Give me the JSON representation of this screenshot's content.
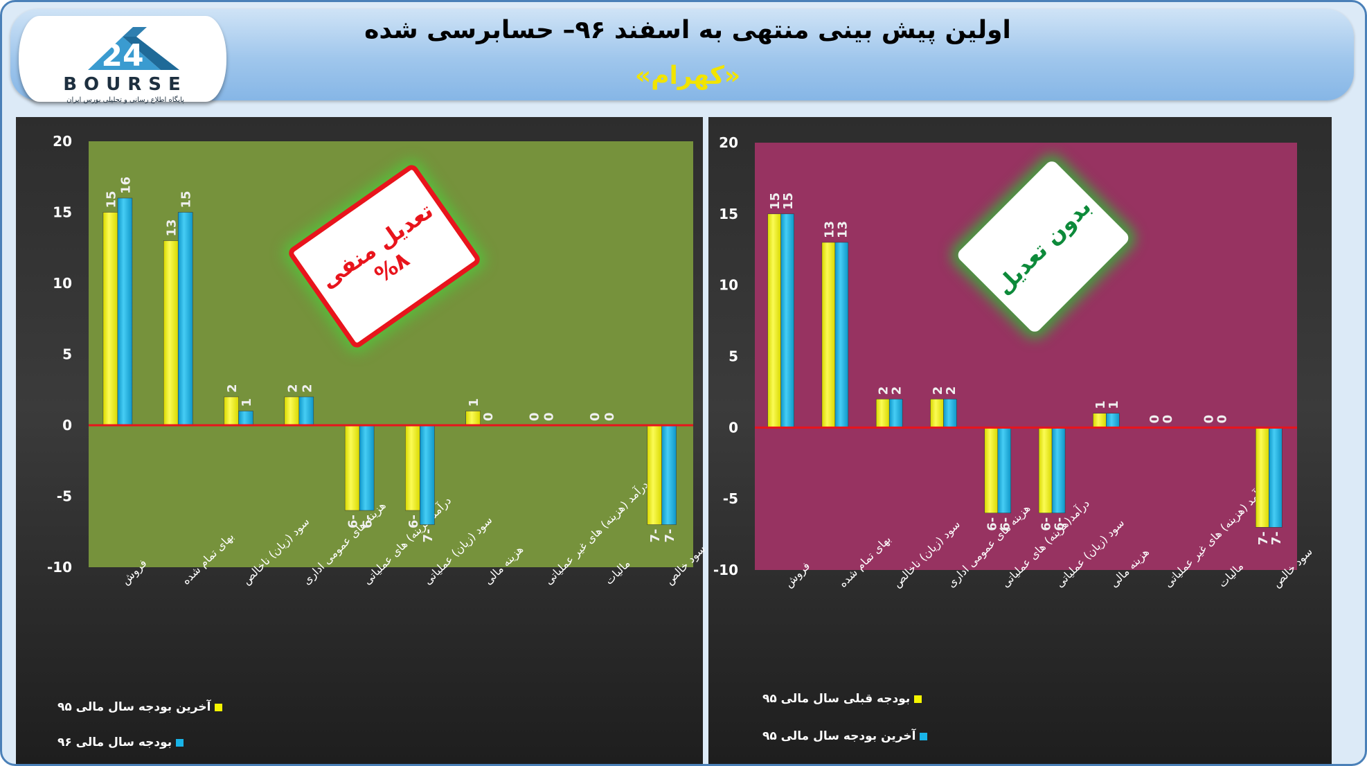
{
  "header": {
    "title": "اولین پیش بینی منتهی به اسفند ۹۶– حسابرسی شده",
    "subtitle": "«کهرام»",
    "logo_text": "BOURSE",
    "logo_subtitle": "پایگاه اطلاع رسانی و تحلیلی بورس ایران"
  },
  "colors": {
    "series_yellow": "#f5f500",
    "series_blue": "#19b4e8",
    "left_plot_bg": "#76923c",
    "right_plot_bg": "#973361",
    "zero_line": "#e8141c",
    "subtitle": "#f2e400"
  },
  "stamps": {
    "left": {
      "line1": "تعدیل منفی",
      "line2": "%۸"
    },
    "right": {
      "line1": "بدون تعدیل"
    }
  },
  "chart_data": [
    {
      "type": "bar",
      "categories": [
        "فروش",
        "بهای تمام شده",
        "سود (زیان) ناخالص",
        "هزینه های عمومی اداری",
        "درآمد(هزینه) های عملیاتی",
        "سود (زیان) عملیاتی",
        "هزینه مالی",
        "درآمد (هزینه) های غیر عملیاتی",
        "مالیات",
        "سود خالص"
      ],
      "series": [
        {
          "name": "آخرین بودجه سال مالی ۹۵",
          "color": "yellow",
          "values": [
            15,
            13,
            2,
            2,
            -6,
            -6,
            1,
            0,
            0,
            -7
          ]
        },
        {
          "name": "بودجه سال مالی ۹۶",
          "color": "blue",
          "values": [
            16,
            15,
            1,
            2,
            -6,
            -7,
            0,
            0,
            0,
            -7
          ]
        }
      ],
      "yticks": [
        "20",
        "15",
        "10",
        "5",
        "0",
        "-5",
        "-10"
      ],
      "ylim": [
        -10,
        20
      ],
      "grid": false,
      "legend_position": "bottom-left"
    },
    {
      "type": "bar",
      "categories": [
        "فروش",
        "بهای تمام شده",
        "سود (زیان) ناخالص",
        "هزینه های عمومی اداری",
        "درآمد(هزینه) های عملیاتی",
        "سود (زیان) عملیاتی",
        "هزینه مالی",
        "درآمد (هزینه) های غیر عملیاتی",
        "مالیات",
        "سود خالص"
      ],
      "series": [
        {
          "name": "بودجه قبلی سال مالی ۹۵",
          "color": "yellow",
          "values": [
            15,
            13,
            2,
            2,
            -6,
            -6,
            1,
            0,
            0,
            -7
          ]
        },
        {
          "name": "آخرین بودجه سال مالی ۹۵",
          "color": "blue",
          "values": [
            15,
            13,
            2,
            2,
            -6,
            -6,
            1,
            0,
            0,
            -7
          ]
        }
      ],
      "yticks": [
        "20",
        "15",
        "10",
        "5",
        "0",
        "-5",
        "-10"
      ],
      "ylim": [
        -10,
        20
      ],
      "grid": false,
      "legend_position": "bottom-left"
    }
  ]
}
